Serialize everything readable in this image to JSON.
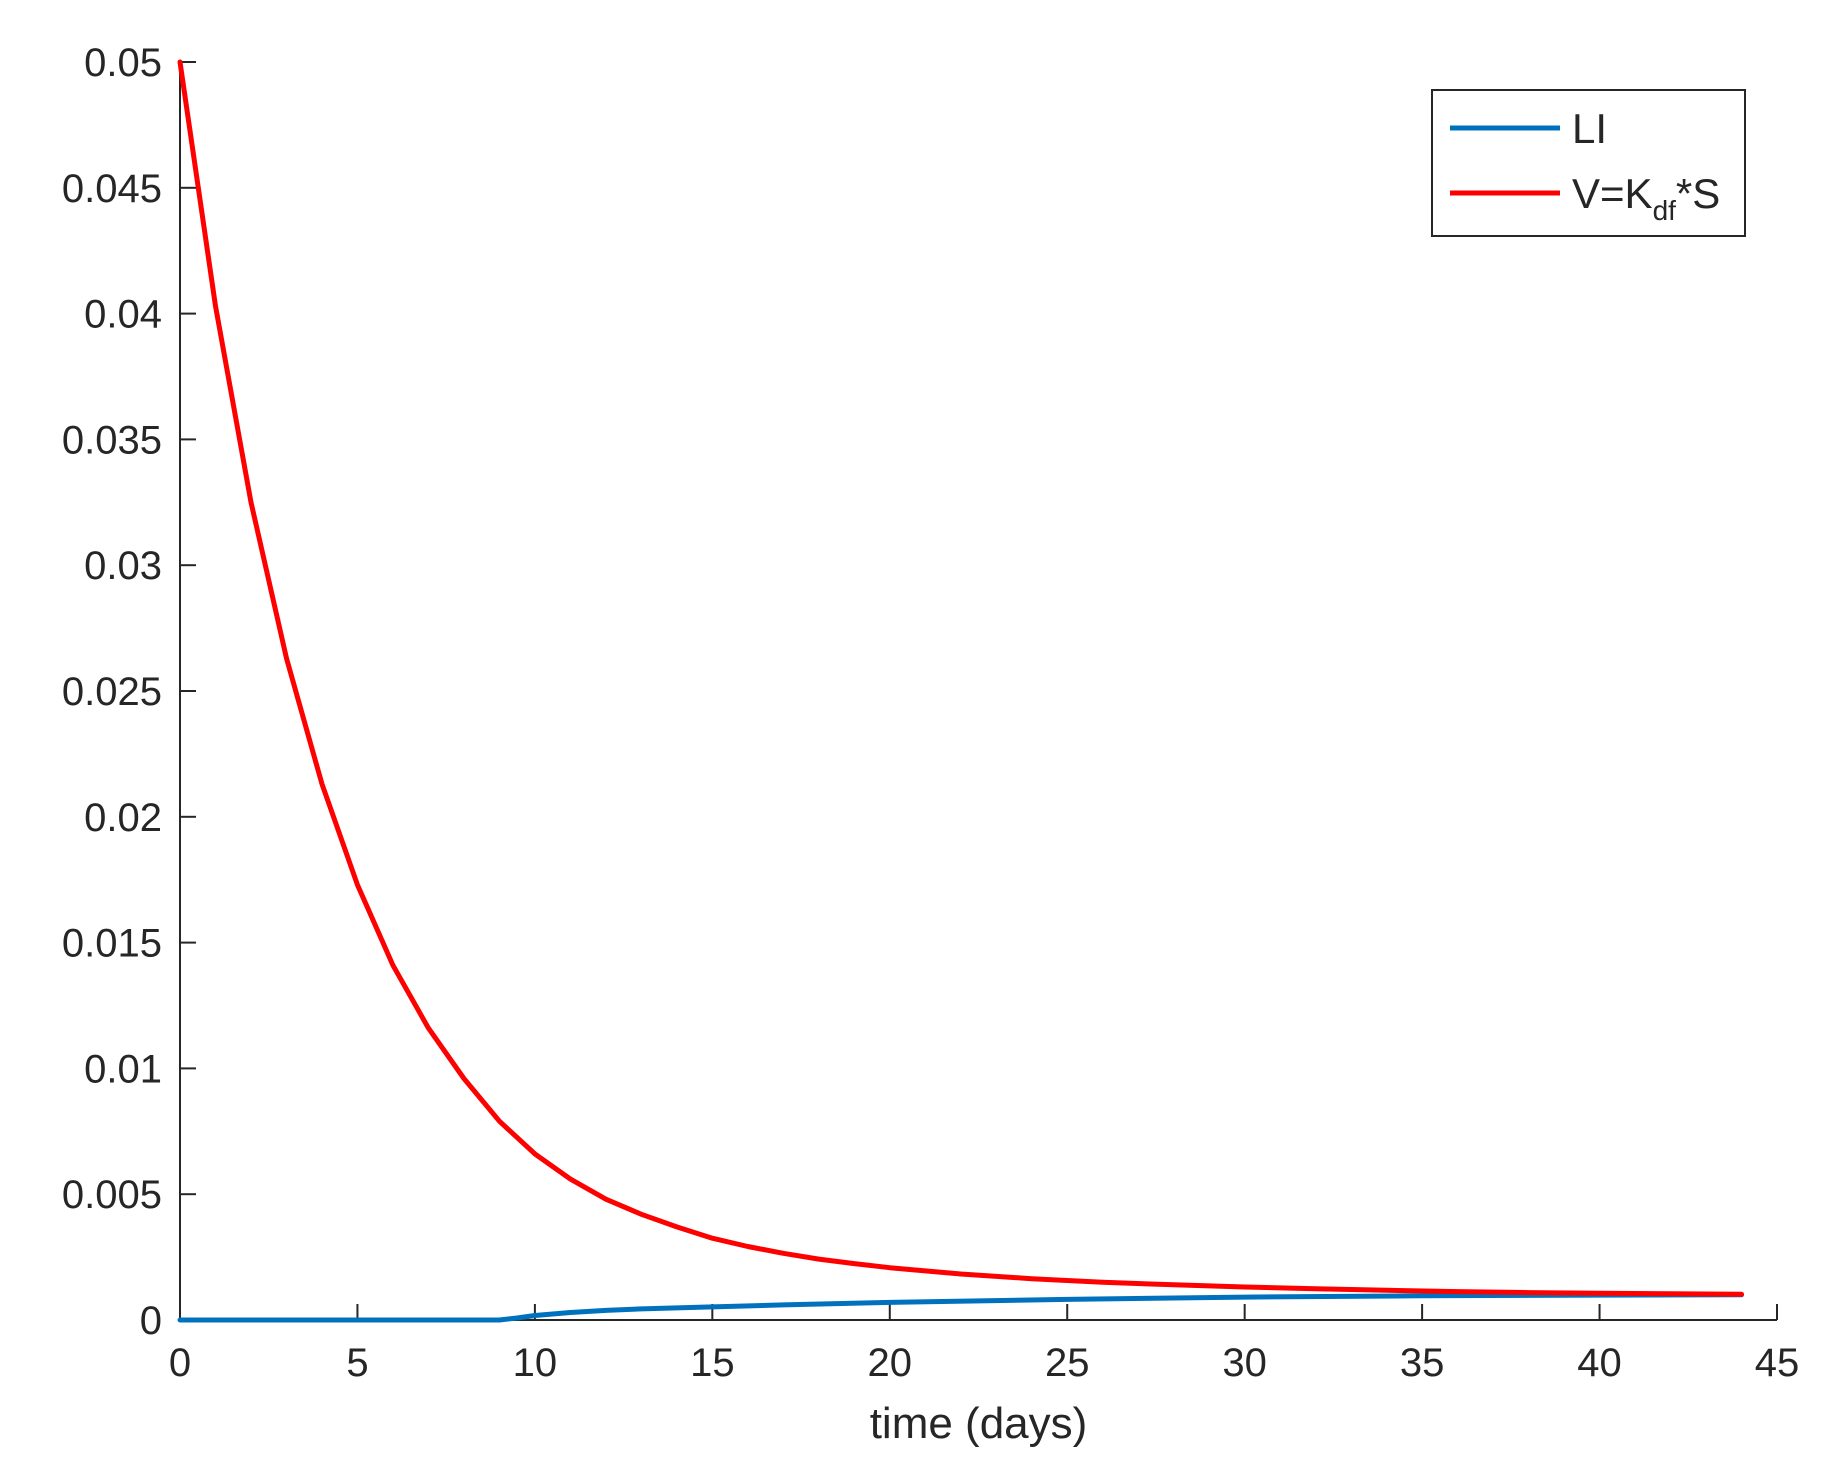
{
  "chart_data": {
    "type": "line",
    "title": "",
    "xlabel": "time (days)",
    "ylabel": "",
    "xlim": [
      0,
      45
    ],
    "ylim": [
      0,
      0.05
    ],
    "xticks": [
      0,
      5,
      10,
      15,
      20,
      25,
      30,
      35,
      40,
      45
    ],
    "xtick_labels": [
      "0",
      "5",
      "10",
      "15",
      "20",
      "25",
      "30",
      "35",
      "40",
      "45"
    ],
    "yticks": [
      0,
      0.005,
      0.01,
      0.015,
      0.02,
      0.025,
      0.03,
      0.035,
      0.04,
      0.045,
      0.05
    ],
    "ytick_labels": [
      "0",
      "0.005",
      "0.01",
      "0.015",
      "0.02",
      "0.025",
      "0.03",
      "0.035",
      "0.04",
      "0.045",
      "0.05"
    ],
    "grid": false,
    "legend_position": "top-right",
    "series": [
      {
        "name": "LI",
        "color": "#0072bd",
        "x": [
          0,
          5,
          9,
          9.5,
          10,
          11,
          12,
          13,
          14,
          15,
          17,
          20,
          25,
          30,
          35,
          40,
          44
        ],
        "y": [
          0,
          0,
          0,
          8e-05,
          0.00018,
          0.0003,
          0.00038,
          0.00044,
          0.00048,
          0.00052,
          0.0006,
          0.0007,
          0.00082,
          0.00091,
          0.00096,
          0.00099,
          0.001
        ]
      },
      {
        "name": "V=K_df*S",
        "legend_parts": {
          "main": "V=K",
          "sub": "df",
          "tail": "*S"
        },
        "color": "#ff0000",
        "x": [
          0,
          1,
          2,
          3,
          4,
          5,
          6,
          7,
          8,
          9,
          10,
          11,
          12,
          13,
          14,
          15,
          16,
          17,
          18,
          19,
          20,
          22,
          24,
          26,
          28,
          30,
          32,
          34,
          36,
          38,
          40,
          42,
          44
        ],
        "y": [
          0.05,
          0.0403,
          0.0325,
          0.0263,
          0.0213,
          0.0173,
          0.0141,
          0.0116,
          0.0096,
          0.0079,
          0.0066,
          0.0056,
          0.0048,
          0.0042,
          0.0037,
          0.00325,
          0.00292,
          0.00265,
          0.00242,
          0.00224,
          0.00208,
          0.00183,
          0.00164,
          0.0015,
          0.0014,
          0.00131,
          0.00124,
          0.00118,
          0.00113,
          0.00109,
          0.00106,
          0.00104,
          0.00102
        ]
      }
    ]
  }
}
